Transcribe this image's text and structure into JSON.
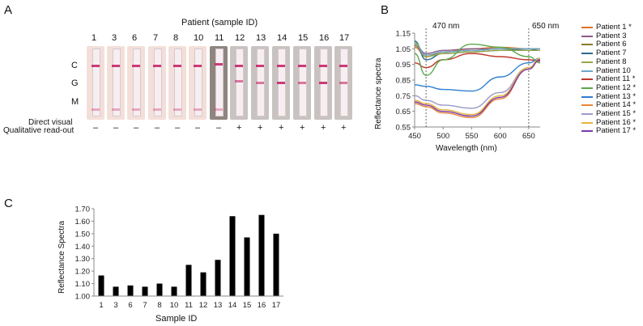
{
  "panel_a": {
    "letter": "A",
    "header": "Patient (sample ID)",
    "ids": [
      "1",
      "3",
      "6",
      "7",
      "8",
      "10",
      "11",
      "12",
      "13",
      "14",
      "15",
      "16",
      "17"
    ],
    "zone_labels": [
      "C",
      "G",
      "M"
    ],
    "row_labels": [
      "Direct visual",
      "Qualitative read-out"
    ],
    "readouts": [
      "–",
      "–",
      "–",
      "–",
      "–",
      "–",
      "–",
      "+",
      "+",
      "+",
      "+",
      "+",
      "+"
    ]
  },
  "panel_b": {
    "letter": "B",
    "annotations": [
      "470 nm",
      "650 nm"
    ],
    "series_colors": [
      "#e0712a",
      "#8c5a8c",
      "#8a7a2a",
      "#2d6a8a",
      "#9aa54a",
      "#6aa7c8",
      "#c0392b",
      "#5aa84a",
      "#2f7fd0",
      "#e8863a",
      "#9a9ac8",
      "#e8b53a",
      "#7a3aa8"
    ]
  },
  "panel_c": {
    "letter": "C"
  },
  "chart_data": [
    {
      "type": "line",
      "xlabel": "Wavelength (nm)",
      "ylabel": "Reflectance spectra",
      "xlim": [
        450,
        670
      ],
      "ylim": [
        0.55,
        1.15
      ],
      "xticks": [
        450,
        500,
        550,
        600,
        650
      ],
      "yticks": [
        "0.55",
        "0.65",
        "0.75",
        "0.85",
        "0.95",
        "1.05",
        "1.15"
      ],
      "grid": false,
      "legend": "right",
      "series": [
        {
          "name": "Patient 1 *",
          "x": [
            450,
            470,
            500,
            550,
            600,
            650,
            670
          ],
          "y": [
            1.06,
            1.0,
            1.03,
            1.05,
            1.06,
            1.05,
            1.05
          ]
        },
        {
          "name": "Patient 3",
          "x": [
            450,
            470,
            500,
            550,
            600,
            650,
            670
          ],
          "y": [
            1.08,
            1.02,
            1.04,
            1.05,
            1.05,
            1.04,
            1.04
          ]
        },
        {
          "name": "Patient 6",
          "x": [
            450,
            470,
            500,
            550,
            600,
            650,
            670
          ],
          "y": [
            1.07,
            1.0,
            1.03,
            1.04,
            1.05,
            1.05,
            1.05
          ]
        },
        {
          "name": "Patient 7",
          "x": [
            450,
            470,
            500,
            550,
            600,
            650,
            670
          ],
          "y": [
            1.1,
            0.98,
            1.02,
            1.03,
            1.04,
            1.05,
            1.04
          ]
        },
        {
          "name": "Patient 8",
          "x": [
            450,
            470,
            500,
            550,
            600,
            650,
            670
          ],
          "y": [
            1.09,
            1.0,
            1.02,
            1.03,
            1.04,
            1.04,
            1.04
          ]
        },
        {
          "name": "Patient 10",
          "x": [
            450,
            470,
            500,
            550,
            600,
            650,
            670
          ],
          "y": [
            1.08,
            1.01,
            1.03,
            1.04,
            1.05,
            1.05,
            1.05
          ]
        },
        {
          "name": "Patient 11 *",
          "x": [
            450,
            470,
            500,
            550,
            600,
            650,
            670
          ],
          "y": [
            0.96,
            0.93,
            0.98,
            1.02,
            1.0,
            0.98,
            0.97
          ]
        },
        {
          "name": "Patient 12 *",
          "x": [
            450,
            470,
            500,
            550,
            600,
            650,
            670
          ],
          "y": [
            1.02,
            0.88,
            0.98,
            1.08,
            1.06,
            1.0,
            0.96
          ]
        },
        {
          "name": "Patient 13 *",
          "x": [
            450,
            470,
            500,
            550,
            600,
            650,
            670
          ],
          "y": [
            0.82,
            0.81,
            0.79,
            0.78,
            0.87,
            0.96,
            0.99
          ]
        },
        {
          "name": "Patient 14 *",
          "x": [
            450,
            470,
            500,
            550,
            600,
            650,
            670
          ],
          "y": [
            0.7,
            0.68,
            0.64,
            0.61,
            0.73,
            0.92,
            0.98
          ]
        },
        {
          "name": "Patient 15 *",
          "x": [
            450,
            470,
            500,
            550,
            600,
            650,
            670
          ],
          "y": [
            0.75,
            0.72,
            0.69,
            0.67,
            0.77,
            0.93,
            0.98
          ]
        },
        {
          "name": "Patient 16 *",
          "x": [
            450,
            470,
            500,
            550,
            600,
            650,
            670
          ],
          "y": [
            0.72,
            0.7,
            0.66,
            0.63,
            0.75,
            0.93,
            0.99
          ]
        },
        {
          "name": "Patient 17 *",
          "x": [
            450,
            470,
            500,
            550,
            600,
            650,
            670
          ],
          "y": [
            0.71,
            0.69,
            0.65,
            0.62,
            0.74,
            0.92,
            0.98
          ]
        }
      ]
    },
    {
      "type": "bar",
      "xlabel": "Sample ID",
      "ylabel": "Reflectance Spectra",
      "categories": [
        "1",
        "3",
        "6",
        "7",
        "8",
        "10",
        "11",
        "12",
        "13",
        "14",
        "15",
        "16",
        "17"
      ],
      "values": [
        1.165,
        1.075,
        1.085,
        1.075,
        1.1,
        1.075,
        1.25,
        1.19,
        1.29,
        1.64,
        1.47,
        1.65,
        1.5
      ],
      "ylim": [
        1.0,
        1.7
      ],
      "yticks": [
        "1.00",
        "1.10",
        "1.20",
        "1.30",
        "1.40",
        "1.50",
        "1.60",
        "1.70"
      ],
      "grid": false
    }
  ]
}
